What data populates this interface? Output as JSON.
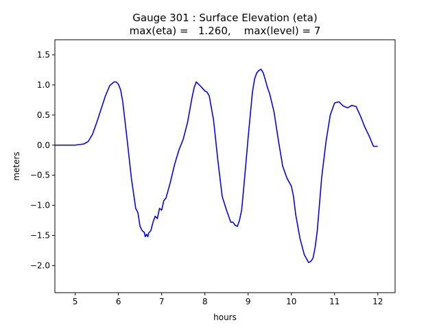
{
  "chart_data": {
    "type": "line",
    "title_line1": "Gauge 301 : Surface Elevation (eta)",
    "title_line2": "max(eta) =   1.260,    max(level) = 7",
    "xlabel": "hours",
    "ylabel": "meters",
    "xlim": [
      4.53,
      12.4
    ],
    "ylim": [
      -2.45,
      1.75
    ],
    "x_ticks": [
      5,
      6,
      7,
      8,
      9,
      10,
      11,
      12
    ],
    "x_tick_labels": [
      "5",
      "6",
      "7",
      "8",
      "9",
      "10",
      "11",
      "12"
    ],
    "y_ticks": [
      1.5,
      1.0,
      0.5,
      0.0,
      -0.5,
      -1.0,
      -1.5,
      -2.0
    ],
    "y_tick_labels": [
      "1.5",
      "1.0",
      "0.5",
      "0.0",
      "−0.5",
      "−1.0",
      "−1.5",
      "−2.0"
    ],
    "grid": false,
    "series": [
      {
        "name": "eta",
        "color": "#0000ff",
        "x": [
          4.53,
          4.8,
          5.0,
          5.2,
          5.3,
          5.4,
          5.5,
          5.6,
          5.7,
          5.8,
          5.9,
          5.95,
          6.0,
          6.05,
          6.1,
          6.2,
          6.3,
          6.4,
          6.45,
          6.5,
          6.55,
          6.6,
          6.62,
          6.65,
          6.68,
          6.7,
          6.75,
          6.8,
          6.85,
          6.9,
          6.95,
          7.0,
          7.05,
          7.1,
          7.2,
          7.3,
          7.4,
          7.5,
          7.6,
          7.7,
          7.75,
          7.8,
          7.9,
          8.0,
          8.05,
          8.1,
          8.2,
          8.3,
          8.4,
          8.5,
          8.6,
          8.65,
          8.7,
          8.75,
          8.8,
          8.85,
          8.9,
          9.0,
          9.1,
          9.15,
          9.2,
          9.25,
          9.3,
          9.35,
          9.4,
          9.45,
          9.5,
          9.6,
          9.7,
          9.8,
          9.9,
          10.0,
          10.05,
          10.1,
          10.2,
          10.3,
          10.4,
          10.45,
          10.5,
          10.55,
          10.6,
          10.7,
          10.8,
          10.9,
          11.0,
          11.1,
          11.2,
          11.3,
          11.4,
          11.5,
          11.6,
          11.7,
          11.8,
          11.9,
          12.0
        ],
        "values": [
          0.0,
          0.0,
          0.0,
          0.02,
          0.06,
          0.18,
          0.38,
          0.6,
          0.82,
          0.99,
          1.05,
          1.05,
          1.01,
          0.92,
          0.72,
          0.1,
          -0.55,
          -1.05,
          -1.12,
          -1.35,
          -1.42,
          -1.45,
          -1.52,
          -1.48,
          -1.52,
          -1.46,
          -1.42,
          -1.28,
          -1.18,
          -1.22,
          -1.05,
          -1.08,
          -0.92,
          -0.88,
          -0.62,
          -0.32,
          -0.08,
          0.1,
          0.38,
          0.78,
          0.95,
          1.05,
          0.98,
          0.9,
          0.88,
          0.82,
          0.42,
          -0.25,
          -0.85,
          -1.08,
          -1.28,
          -1.28,
          -1.33,
          -1.35,
          -1.25,
          -1.08,
          -0.7,
          0.12,
          0.88,
          1.1,
          1.2,
          1.24,
          1.26,
          1.2,
          1.08,
          0.95,
          0.85,
          0.55,
          0.08,
          -0.35,
          -0.55,
          -0.68,
          -0.85,
          -1.15,
          -1.55,
          -1.82,
          -1.95,
          -1.93,
          -1.88,
          -1.7,
          -1.42,
          -0.55,
          0.05,
          0.5,
          0.7,
          0.72,
          0.65,
          0.62,
          0.66,
          0.64,
          0.48,
          0.3,
          0.15,
          -0.02,
          -0.02
        ]
      }
    ]
  }
}
